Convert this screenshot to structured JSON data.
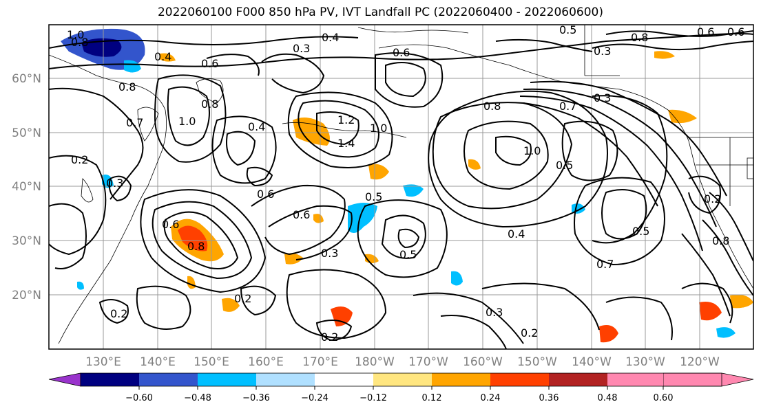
{
  "title": "2022060100 F000 850 hPa PV, IVT Landfall PC (2022060400 - 2022060600)",
  "lat_labels": [
    "60°N",
    "50°N",
    "40°N",
    "30°N",
    "20°N"
  ],
  "lon_labels": [
    "130°E",
    "140°E",
    "150°E",
    "160°E",
    "170°E",
    "180°W",
    "170°W",
    "160°W",
    "150°W",
    "140°W",
    "130°W",
    "120°W"
  ],
  "colorbar": {
    "colors": [
      "#9933cc",
      "#000080",
      "#3355cc",
      "#00bfff",
      "#b0e0ff",
      "#ffffff",
      "#ffe680",
      "#ffa500",
      "#ff4000",
      "#b22222",
      "#ff88b0"
    ],
    "ticks": [
      "−0.60",
      "−0.48",
      "−0.36",
      "−0.24",
      "−0.12",
      "0.12",
      "0.24",
      "0.36",
      "0.48",
      "0.60"
    ]
  },
  "contour_labels": [
    "1.0",
    "0.8",
    "0.4",
    "0.6",
    "0.3",
    "0.4",
    "0.6",
    "0.3",
    "0.5",
    "0.8",
    "0.6",
    "0.2",
    "0.8",
    "0.7",
    "1.0",
    "0.8",
    "0.4",
    "0.6",
    "1.2",
    "1.0",
    "1.4",
    "0.8",
    "0.7",
    "0.3",
    "0.2",
    "0.3",
    "0.6",
    "0.5",
    "0.8",
    "1.0",
    "0.5",
    "0.5",
    "0.6",
    "0.3",
    "0.5",
    "0.4",
    "0.7",
    "0.2",
    "0.2",
    "0.2",
    "0.3",
    "0.2",
    "0.8",
    "0.6"
  ]
}
